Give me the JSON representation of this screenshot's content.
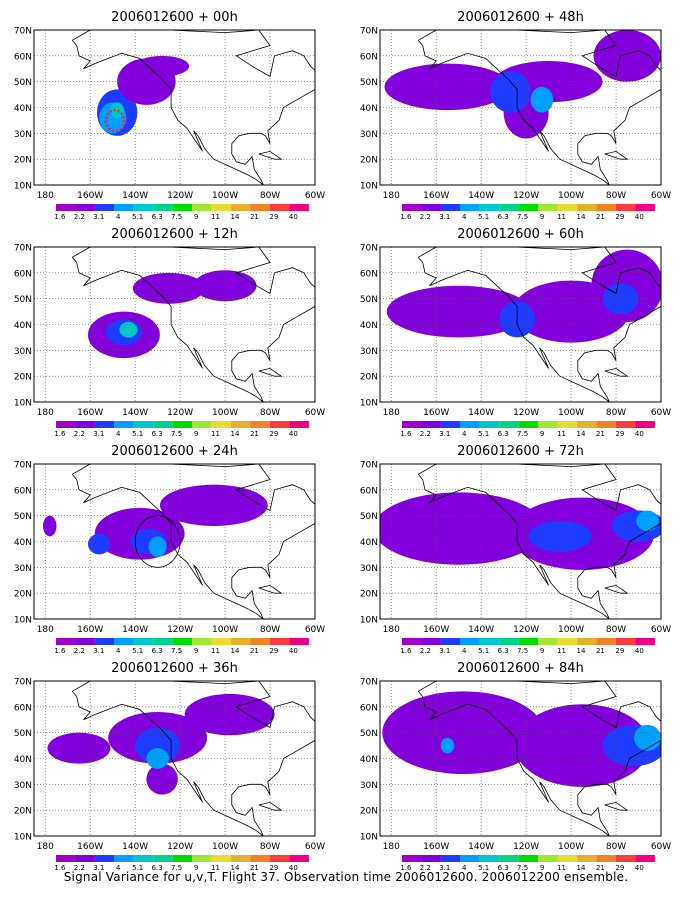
{
  "figure_caption": "Signal Variance for u,v,T. Flight 37. Observation time 2006012600. 2006012200 ensemble.",
  "colors": {
    "contour_levels": [
      "#a000c8",
      "#8200dc",
      "#1e3cff",
      "#00a0ff",
      "#00c8c8",
      "#00d28c",
      "#00dc00",
      "#a0e632",
      "#e6dc32",
      "#e6af2d",
      "#f08228",
      "#fa3c3c",
      "#f00082"
    ],
    "coast": "#000000",
    "grid": "#555555"
  },
  "chart_data": [
    {
      "type": "heatmap",
      "title": "2006012600 + 00h",
      "x_ticks": [
        "180",
        "160W",
        "140W",
        "120W",
        "100W",
        "80W",
        "60W"
      ],
      "y_ticks": [
        "10N",
        "20N",
        "30N",
        "40N",
        "50N",
        "60N",
        "70N"
      ],
      "lon_range": [
        -185,
        -60
      ],
      "lat_range": [
        10,
        70
      ],
      "colorbar_labels": [
        "1.6",
        "2.2",
        "3.1",
        "4",
        "5.1",
        "6.3",
        "7.5",
        "9",
        "11",
        "14",
        "21",
        "29",
        "40"
      ],
      "grid": "dotted",
      "blobs": [
        {
          "lon": -148,
          "lat": 38,
          "rx": 9,
          "ry": 9,
          "level": 2
        },
        {
          "lon": -135,
          "lat": 50,
          "rx": 13,
          "ry": 9,
          "level": 1
        },
        {
          "lon": -128,
          "lat": 56,
          "rx": 12,
          "ry": 4,
          "level": 1
        },
        {
          "lon": -150,
          "lat": 36,
          "rx": 6,
          "ry": 6,
          "level": 3
        },
        {
          "lon": -148,
          "lat": 39,
          "rx": 3,
          "ry": 3,
          "level": 4
        }
      ],
      "markers": [
        {
          "kind": "obs-circle",
          "lon": -149,
          "lat": 35,
          "r": 4
        }
      ]
    },
    {
      "type": "heatmap",
      "title": "2006012600 + 48h",
      "x_ticks": [
        "180",
        "160W",
        "140W",
        "120W",
        "100W",
        "80W",
        "60W"
      ],
      "y_ticks": [
        "10N",
        "20N",
        "30N",
        "40N",
        "50N",
        "60N",
        "70N"
      ],
      "lon_range": [
        -185,
        -60
      ],
      "lat_range": [
        10,
        70
      ],
      "colorbar_labels": [
        "1.6",
        "2.2",
        "3.1",
        "4",
        "5.1",
        "6.3",
        "7.5",
        "9",
        "11",
        "14",
        "21",
        "29",
        "40"
      ],
      "grid": "dotted",
      "blobs": [
        {
          "lon": -155,
          "lat": 48,
          "rx": 28,
          "ry": 9,
          "level": 1
        },
        {
          "lon": -110,
          "lat": 50,
          "rx": 24,
          "ry": 8,
          "level": 1
        },
        {
          "lon": -75,
          "lat": 60,
          "rx": 15,
          "ry": 10,
          "level": 1
        },
        {
          "lon": -120,
          "lat": 38,
          "rx": 10,
          "ry": 10,
          "level": 1
        },
        {
          "lon": -127,
          "lat": 46,
          "rx": 9,
          "ry": 8,
          "level": 2
        },
        {
          "lon": -113,
          "lat": 43,
          "rx": 5,
          "ry": 5,
          "level": 3
        }
      ],
      "markers": []
    },
    {
      "type": "heatmap",
      "title": "2006012600 + 12h",
      "x_ticks": [
        "180",
        "160W",
        "140W",
        "120W",
        "100W",
        "80W",
        "60W"
      ],
      "y_ticks": [
        "10N",
        "20N",
        "30N",
        "40N",
        "50N",
        "60N",
        "70N"
      ],
      "lon_range": [
        -185,
        -60
      ],
      "lat_range": [
        10,
        70
      ],
      "colorbar_labels": [
        "1.6",
        "2.2",
        "3.1",
        "4",
        "5.1",
        "6.3",
        "7.5",
        "9",
        "11",
        "14",
        "21",
        "29",
        "40"
      ],
      "grid": "dotted",
      "blobs": [
        {
          "lon": -145,
          "lat": 36,
          "rx": 16,
          "ry": 9,
          "level": 1
        },
        {
          "lon": -125,
          "lat": 54,
          "rx": 16,
          "ry": 6,
          "level": 1
        },
        {
          "lon": -100,
          "lat": 55,
          "rx": 14,
          "ry": 6,
          "level": 1
        },
        {
          "lon": -145,
          "lat": 37,
          "rx": 8,
          "ry": 5,
          "level": 2
        },
        {
          "lon": -143,
          "lat": 38,
          "rx": 4,
          "ry": 3,
          "level": 4
        }
      ],
      "markers": []
    },
    {
      "type": "heatmap",
      "title": "2006012600 + 60h",
      "x_ticks": [
        "180",
        "160W",
        "140W",
        "120W",
        "100W",
        "80W",
        "60W"
      ],
      "y_ticks": [
        "10N",
        "20N",
        "30N",
        "40N",
        "50N",
        "60N",
        "70N"
      ],
      "lon_range": [
        -185,
        -60
      ],
      "lat_range": [
        10,
        70
      ],
      "colorbar_labels": [
        "1.6",
        "2.2",
        "3.1",
        "4",
        "5.1",
        "6.3",
        "7.5",
        "9",
        "11",
        "14",
        "21",
        "29",
        "40"
      ],
      "grid": "dotted",
      "blobs": [
        {
          "lon": -150,
          "lat": 45,
          "rx": 32,
          "ry": 10,
          "level": 1
        },
        {
          "lon": -100,
          "lat": 45,
          "rx": 26,
          "ry": 12,
          "level": 1
        },
        {
          "lon": -75,
          "lat": 55,
          "rx": 16,
          "ry": 14,
          "level": 1
        },
        {
          "lon": -124,
          "lat": 42,
          "rx": 8,
          "ry": 7,
          "level": 2
        },
        {
          "lon": -78,
          "lat": 50,
          "rx": 8,
          "ry": 6,
          "level": 2
        }
      ],
      "markers": []
    },
    {
      "type": "heatmap",
      "title": "2006012600 + 24h",
      "x_ticks": [
        "180",
        "160W",
        "140W",
        "120W",
        "100W",
        "80W",
        "60W"
      ],
      "y_ticks": [
        "10N",
        "20N",
        "30N",
        "40N",
        "50N",
        "60N",
        "70N"
      ],
      "lon_range": [
        -185,
        -60
      ],
      "lat_range": [
        10,
        70
      ],
      "colorbar_labels": [
        "1.6",
        "2.2",
        "3.1",
        "4",
        "5.1",
        "6.3",
        "7.5",
        "9",
        "11",
        "14",
        "21",
        "29",
        "40"
      ],
      "grid": "dotted",
      "blobs": [
        {
          "lon": -138,
          "lat": 43,
          "rx": 20,
          "ry": 10,
          "level": 1
        },
        {
          "lon": -105,
          "lat": 54,
          "rx": 24,
          "ry": 8,
          "level": 1
        },
        {
          "lon": -178,
          "lat": 46,
          "rx": 3,
          "ry": 4,
          "level": 1
        },
        {
          "lon": -134,
          "lat": 40,
          "rx": 8,
          "ry": 5,
          "level": 2
        },
        {
          "lon": -156,
          "lat": 39,
          "rx": 5,
          "ry": 4,
          "level": 2
        },
        {
          "lon": -130,
          "lat": 38,
          "rx": 4,
          "ry": 4,
          "level": 3
        }
      ],
      "markers": [
        {
          "kind": "target-circle",
          "lon": -130,
          "lat": 40,
          "r": 10
        }
      ]
    },
    {
      "type": "heatmap",
      "title": "2006012600 + 72h",
      "x_ticks": [
        "180",
        "160W",
        "140W",
        "120W",
        "100W",
        "80W",
        "60W"
      ],
      "y_ticks": [
        "10N",
        "20N",
        "30N",
        "40N",
        "50N",
        "60N",
        "70N"
      ],
      "lon_range": [
        -185,
        -60
      ],
      "lat_range": [
        10,
        70
      ],
      "colorbar_labels": [
        "1.6",
        "2.2",
        "3.1",
        "4",
        "5.1",
        "6.3",
        "7.5",
        "9",
        "11",
        "14",
        "21",
        "29",
        "40"
      ],
      "grid": "dotted",
      "blobs": [
        {
          "lon": -150,
          "lat": 45,
          "rx": 38,
          "ry": 14,
          "level": 1
        },
        {
          "lon": -95,
          "lat": 43,
          "rx": 32,
          "ry": 14,
          "level": 1
        },
        {
          "lon": -105,
          "lat": 42,
          "rx": 14,
          "ry": 6,
          "level": 2
        },
        {
          "lon": -70,
          "lat": 46,
          "rx": 12,
          "ry": 6,
          "level": 2
        },
        {
          "lon": -66,
          "lat": 48,
          "rx": 5,
          "ry": 4,
          "level": 3
        }
      ],
      "markers": []
    },
    {
      "type": "heatmap",
      "title": "2006012600 + 36h",
      "x_ticks": [
        "180",
        "160W",
        "140W",
        "120W",
        "100W",
        "80W",
        "60W"
      ],
      "y_ticks": [
        "10N",
        "20N",
        "30N",
        "40N",
        "50N",
        "60N",
        "70N"
      ],
      "lon_range": [
        -185,
        -60
      ],
      "lat_range": [
        10,
        70
      ],
      "colorbar_labels": [
        "1.6",
        "2.2",
        "3.1",
        "4",
        "5.1",
        "6.3",
        "7.5",
        "9",
        "11",
        "14",
        "21",
        "29",
        "40"
      ],
      "grid": "dotted",
      "blobs": [
        {
          "lon": -165,
          "lat": 44,
          "rx": 14,
          "ry": 6,
          "level": 1
        },
        {
          "lon": -130,
          "lat": 48,
          "rx": 22,
          "ry": 10,
          "level": 1
        },
        {
          "lon": -98,
          "lat": 57,
          "rx": 20,
          "ry": 8,
          "level": 1
        },
        {
          "lon": -128,
          "lat": 32,
          "rx": 7,
          "ry": 6,
          "level": 1
        },
        {
          "lon": -130,
          "lat": 45,
          "rx": 10,
          "ry": 7,
          "level": 2
        },
        {
          "lon": -130,
          "lat": 40,
          "rx": 5,
          "ry": 4,
          "level": 3
        }
      ],
      "markers": []
    },
    {
      "type": "heatmap",
      "title": "2006012600 + 84h",
      "x_ticks": [
        "180",
        "160W",
        "140W",
        "120W",
        "100W",
        "80W",
        "60W"
      ],
      "y_ticks": [
        "10N",
        "20N",
        "30N",
        "40N",
        "50N",
        "60N",
        "70N"
      ],
      "lon_range": [
        -185,
        -60
      ],
      "lat_range": [
        10,
        70
      ],
      "colorbar_labels": [
        "1.6",
        "2.2",
        "3.1",
        "4",
        "5.1",
        "6.3",
        "7.5",
        "9",
        "11",
        "14",
        "21",
        "29",
        "40"
      ],
      "grid": "dotted",
      "blobs": [
        {
          "lon": -148,
          "lat": 50,
          "rx": 36,
          "ry": 16,
          "level": 1
        },
        {
          "lon": -95,
          "lat": 45,
          "rx": 30,
          "ry": 16,
          "level": 1
        },
        {
          "lon": -72,
          "lat": 45,
          "rx": 14,
          "ry": 8,
          "level": 2
        },
        {
          "lon": -66,
          "lat": 48,
          "rx": 6,
          "ry": 5,
          "level": 3
        },
        {
          "lon": -155,
          "lat": 45,
          "rx": 3,
          "ry": 3,
          "level": 3
        }
      ],
      "markers": []
    }
  ]
}
